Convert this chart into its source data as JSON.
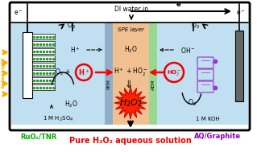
{
  "bg_color": "#ffffff",
  "cell_blue": "#c0dff0",
  "cell_blue_right": "#b8e0f0",
  "spe_bg": "#f0c090",
  "pem_color": "#90aec8",
  "aem_color": "#98d890",
  "top_bar_bg": "#ffffff",
  "solar_arrow_color": "#ffaa00",
  "red_circle_color": "#ee0000",
  "red_text_color": "#ee0000",
  "green_text_color": "#00aa00",
  "purple_text_color": "#8800bb",
  "purple_mol": "#9933cc",
  "spark_color": "#ff2200",
  "title": "Pure H₂O₂ aqueous solution",
  "left_label": "RuOₓ/TNR",
  "right_label": "AQ/Graphite",
  "left_electrolyte": "1 M H₂SO₄",
  "right_electrolyte": "1 M KOH",
  "figw": 3.19,
  "figh": 1.89,
  "dpi": 100
}
